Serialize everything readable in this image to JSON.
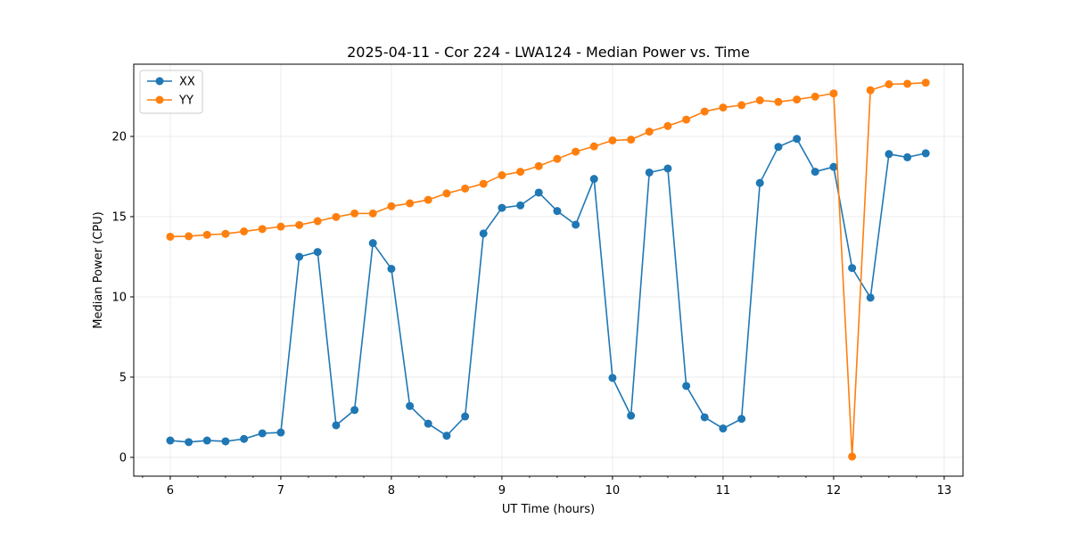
{
  "chart_data": {
    "type": "line",
    "title": "2025-04-11 - Cor 224 - LWA124 - Median Power vs. Time",
    "xlabel": "UT Time (hours)",
    "ylabel": "Median Power (CPU)",
    "xlim": [
      5.67,
      13.17
    ],
    "ylim": [
      -1.17,
      24.5
    ],
    "xticks": [
      6,
      7,
      8,
      9,
      10,
      11,
      12,
      13
    ],
    "yticks": [
      0,
      5,
      10,
      15,
      20
    ],
    "grid": true,
    "legend_position": "top-left",
    "x": [
      6.0,
      6.167,
      6.333,
      6.5,
      6.667,
      6.833,
      7.0,
      7.167,
      7.333,
      7.5,
      7.667,
      7.833,
      8.0,
      8.167,
      8.333,
      8.5,
      8.667,
      8.833,
      9.0,
      9.167,
      9.333,
      9.5,
      9.667,
      9.833,
      10.0,
      10.167,
      10.333,
      10.5,
      10.667,
      10.833,
      11.0,
      11.167,
      11.333,
      11.5,
      11.667,
      11.833,
      12.0,
      12.167,
      12.333,
      12.5,
      12.667,
      12.833
    ],
    "series": [
      {
        "name": "XX",
        "color": "#1f77b4",
        "values": [
          1.05,
          0.95,
          1.05,
          1.0,
          1.15,
          1.5,
          1.55,
          12.5,
          12.8,
          2.0,
          2.95,
          13.35,
          11.75,
          3.2,
          2.1,
          1.35,
          2.55,
          13.95,
          15.55,
          15.7,
          16.5,
          15.35,
          14.5,
          17.35,
          4.95,
          2.6,
          17.75,
          18.0,
          4.45,
          2.5,
          1.8,
          2.4,
          17.1,
          19.35,
          19.85,
          17.8,
          18.1,
          11.8,
          9.95,
          18.9,
          18.7,
          18.95
        ]
      },
      {
        "name": "YY",
        "color": "#ff7f0e",
        "values": [
          13.75,
          13.78,
          13.87,
          13.93,
          14.08,
          14.23,
          14.38,
          14.48,
          14.72,
          14.98,
          15.2,
          15.2,
          15.65,
          15.83,
          16.05,
          16.45,
          16.75,
          17.05,
          17.58,
          17.8,
          18.15,
          18.6,
          19.05,
          19.38,
          19.75,
          19.8,
          20.3,
          20.65,
          21.05,
          21.55,
          21.8,
          21.95,
          22.25,
          22.15,
          22.3,
          22.48,
          22.68,
          0.05,
          22.88,
          23.25,
          23.28,
          23.35
        ]
      }
    ]
  }
}
